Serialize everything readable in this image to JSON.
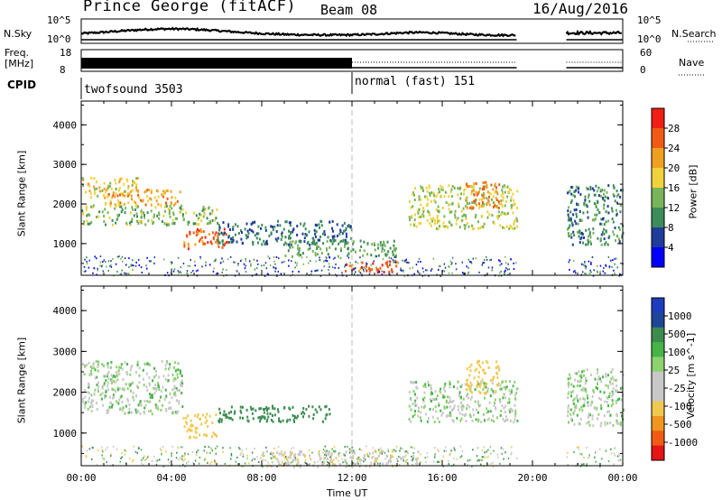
{
  "header": {
    "title": "Prince George (fitACF)",
    "beam": "Beam 08",
    "date": "16/Aug/2016"
  },
  "status_panels": {
    "nsky_label": "N.Sky",
    "nsky_ticks": [
      "10^5",
      "10^0"
    ],
    "nsearch_label": "N.Search",
    "nsearch_ticks": [
      "10^5",
      "10^0"
    ],
    "freq_label_1": "Freq.",
    "freq_label_2": "[MHz]",
    "freq_ticks": [
      "18",
      "8"
    ],
    "nave_label": "Nave",
    "nave_ticks": [
      "60",
      "0"
    ],
    "cpid_label": "CPID",
    "cpid_modes": [
      "twofsound 3503",
      "normal (fast) 151"
    ]
  },
  "x_axis": {
    "label": "Time UT",
    "ticks": [
      "00:00",
      "04:00",
      "08:00",
      "12:00",
      "16:00",
      "20:00",
      "00:00"
    ]
  },
  "colors": {
    "power_scale": [
      "#0000ff",
      "#1e3c9a",
      "#3c8c5a",
      "#78b45a",
      "#f0d23c",
      "#f0a020",
      "#f05a14",
      "#f01e14"
    ],
    "velocity_scale": [
      "#e61414",
      "#f05a14",
      "#f0961e",
      "#f0c850",
      "#c8c8c8",
      "#c8c8c8",
      "#8cd26e",
      "#46b446",
      "#3c8c50",
      "#1e4696",
      "#1e3cbe"
    ]
  },
  "chart_data": [
    {
      "type": "heatmap",
      "panel": "power",
      "ylabel": "Slant Range [km]",
      "xlabel": "Time UT",
      "xlim": [
        0,
        24
      ],
      "ylim": [
        200,
        4600
      ],
      "yticks": [
        "4000",
        "3000",
        "2000",
        "1000"
      ],
      "colorbar_label": "Power [dB]",
      "colorbar_ticks": [
        "28",
        "24",
        "20",
        "16",
        "12",
        "8",
        "4"
      ],
      "approx_blobs": [
        {
          "t": [
            0.0,
            2.5
          ],
          "r": [
            2200,
            2700
          ],
          "level": 18
        },
        {
          "t": [
            1.0,
            4.5
          ],
          "r": [
            2000,
            2400
          ],
          "level": 22
        },
        {
          "t": [
            0.0,
            6.0
          ],
          "r": [
            1500,
            2000
          ],
          "level": 14
        },
        {
          "t": [
            4.5,
            6.5
          ],
          "r": [
            900,
            1400
          ],
          "level": 26
        },
        {
          "t": [
            6.0,
            12.0
          ],
          "r": [
            1000,
            1600
          ],
          "level": 8
        },
        {
          "t": [
            9.0,
            14.0
          ],
          "r": [
            700,
            1100
          ],
          "level": 12
        },
        {
          "t": [
            11.5,
            14.0
          ],
          "r": [
            300,
            600
          ],
          "level": 26
        },
        {
          "t": [
            14.5,
            19.3
          ],
          "r": [
            1400,
            2500
          ],
          "level": 16
        },
        {
          "t": [
            17.0,
            18.5
          ],
          "r": [
            1900,
            2600
          ],
          "level": 24
        },
        {
          "t": [
            21.5,
            24.0
          ],
          "r": [
            1000,
            2500
          ],
          "level": 10
        }
      ]
    },
    {
      "type": "heatmap",
      "panel": "velocity",
      "ylabel": "Slant Range [km]",
      "xlabel": "Time UT",
      "xlim": [
        0,
        24
      ],
      "ylim": [
        200,
        4600
      ],
      "yticks": [
        "4000",
        "3000",
        "2000",
        "1000"
      ],
      "colorbar_label": "Velocity [m s^-1]",
      "colorbar_ticks": [
        "1000",
        "500",
        "100",
        "25",
        "-25",
        "-100",
        "-500",
        "-1000"
      ],
      "approx_blobs": [
        {
          "t": [
            0.0,
            4.5
          ],
          "r": [
            1500,
            2800
          ],
          "level": 0
        },
        {
          "t": [
            4.5,
            6.0
          ],
          "r": [
            900,
            1500
          ],
          "level": -400
        },
        {
          "t": [
            6.0,
            11.0
          ],
          "r": [
            1300,
            1700
          ],
          "level": 300
        },
        {
          "t": [
            8.0,
            15.0
          ],
          "r": [
            200,
            600
          ],
          "level": -80
        },
        {
          "t": [
            14.5,
            19.3
          ],
          "r": [
            1300,
            2300
          ],
          "level": 0
        },
        {
          "t": [
            17.0,
            18.5
          ],
          "r": [
            2000,
            2800
          ],
          "level": -300
        },
        {
          "t": [
            21.5,
            24.0
          ],
          "r": [
            1200,
            2600
          ],
          "level": 0
        }
      ]
    }
  ]
}
